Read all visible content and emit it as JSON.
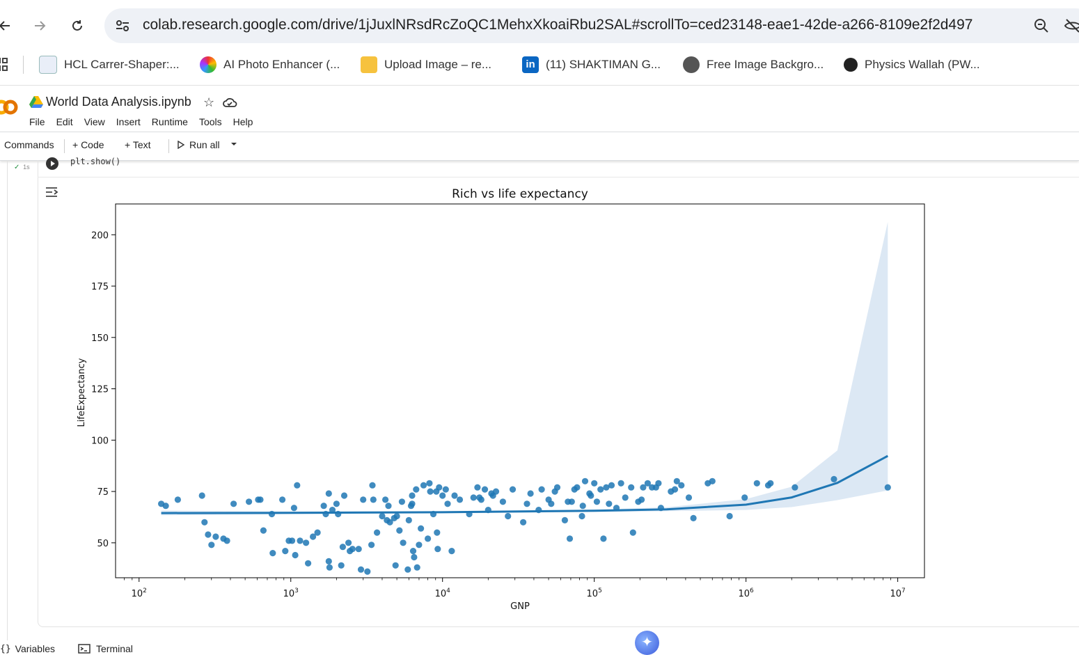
{
  "browser": {
    "url": "colab.research.google.com/drive/1jJuxlNRsdRcZoQC1MehxXkoaiRbu2SAL#scrollTo=ced23148-eae1-42de-a266-8109e2f2d497",
    "bookmarks": [
      {
        "label": "HCL Carrer-Shaper:...",
        "icon": "hcl-icon"
      },
      {
        "label": "AI Photo Enhancer (...",
        "icon": "ai-photo-icon"
      },
      {
        "label": "Upload Image – re...",
        "icon": "upload-image-icon"
      },
      {
        "label": "(11) SHAKTIMAN G...",
        "icon": "linkedin-icon"
      },
      {
        "label": "Free Image Backgro...",
        "icon": "globe-icon"
      },
      {
        "label": "Physics Wallah (PW...",
        "icon": "pw-icon"
      }
    ]
  },
  "colab": {
    "title": "World Data Analysis.ipynb",
    "menu": [
      "File",
      "Edit",
      "View",
      "Insert",
      "Runtime",
      "Tools",
      "Help"
    ],
    "toolbar": {
      "commands": "Commands",
      "code": "+ Code",
      "text": "+ Text",
      "run_all": "Run all"
    },
    "cell": {
      "code": "plt.show()",
      "exec_time": "1s"
    },
    "bottom": {
      "variables": "Variables",
      "terminal": "Terminal"
    }
  },
  "colors": {
    "series": "#1f77b4",
    "band": "#dce8f4"
  },
  "chart_data": {
    "type": "scatter",
    "title": "Rich vs life expectancy",
    "xlabel": "GNP",
    "ylabel": "LifeExpectancy",
    "xscale": "log",
    "xlim": [
      70,
      15000000
    ],
    "ylim": [
      33,
      215
    ],
    "x_ticks": [
      "10^2",
      "10^3",
      "10^4",
      "10^5",
      "10^6",
      "10^7"
    ],
    "y_ticks": [
      50,
      75,
      100,
      125,
      150,
      175,
      200
    ],
    "points": [
      [
        140,
        69
      ],
      [
        150,
        68
      ],
      [
        180,
        71
      ],
      [
        260,
        73
      ],
      [
        270,
        60
      ],
      [
        285,
        54
      ],
      [
        300,
        49
      ],
      [
        320,
        53
      ],
      [
        360,
        52
      ],
      [
        380,
        51
      ],
      [
        420,
        69
      ],
      [
        530,
        70
      ],
      [
        610,
        71
      ],
      [
        630,
        71
      ],
      [
        660,
        56
      ],
      [
        750,
        64
      ],
      [
        760,
        45
      ],
      [
        880,
        71
      ],
      [
        920,
        46
      ],
      [
        970,
        51
      ],
      [
        1020,
        51
      ],
      [
        1050,
        67
      ],
      [
        1070,
        44
      ],
      [
        1100,
        78
      ],
      [
        1150,
        51
      ],
      [
        1260,
        50
      ],
      [
        1300,
        40
      ],
      [
        1400,
        53
      ],
      [
        1500,
        55
      ],
      [
        1650,
        68
      ],
      [
        1700,
        64
      ],
      [
        1780,
        74
      ],
      [
        1780,
        41
      ],
      [
        1800,
        38
      ],
      [
        1880,
        66
      ],
      [
        2000,
        69
      ],
      [
        2050,
        64
      ],
      [
        2150,
        39
      ],
      [
        2200,
        48
      ],
      [
        2250,
        73
      ],
      [
        2400,
        50
      ],
      [
        2450,
        46
      ],
      [
        2550,
        47
      ],
      [
        2800,
        47
      ],
      [
        2900,
        37
      ],
      [
        3000,
        71
      ],
      [
        3200,
        36
      ],
      [
        3400,
        49
      ],
      [
        3450,
        78
      ],
      [
        3500,
        71
      ],
      [
        3700,
        55
      ],
      [
        4000,
        63
      ],
      [
        4200,
        71
      ],
      [
        4300,
        61
      ],
      [
        4400,
        68
      ],
      [
        4500,
        60
      ],
      [
        4800,
        62
      ],
      [
        4900,
        39
      ],
      [
        5000,
        63
      ],
      [
        5200,
        56
      ],
      [
        5400,
        70
      ],
      [
        5500,
        50
      ],
      [
        5900,
        37
      ],
      [
        6000,
        61
      ],
      [
        6200,
        68
      ],
      [
        6300,
        73
      ],
      [
        6300,
        69
      ],
      [
        6400,
        46
      ],
      [
        6500,
        43
      ],
      [
        6700,
        76
      ],
      [
        6800,
        38
      ],
      [
        7000,
        49
      ],
      [
        7200,
        57
      ],
      [
        7500,
        78
      ],
      [
        8000,
        52
      ],
      [
        8200,
        79
      ],
      [
        8300,
        75
      ],
      [
        8700,
        64
      ],
      [
        9100,
        75
      ],
      [
        9200,
        55
      ],
      [
        9300,
        47
      ],
      [
        9500,
        77
      ],
      [
        10000,
        73
      ],
      [
        10500,
        76
      ],
      [
        10800,
        69
      ],
      [
        11500,
        46
      ],
      [
        12000,
        73
      ],
      [
        13000,
        71
      ],
      [
        15000,
        64
      ],
      [
        16000,
        72
      ],
      [
        17000,
        77
      ],
      [
        17500,
        72
      ],
      [
        18000,
        71
      ],
      [
        19000,
        76
      ],
      [
        20000,
        66
      ],
      [
        21000,
        74
      ],
      [
        21500,
        73
      ],
      [
        22500,
        75
      ],
      [
        25000,
        70
      ],
      [
        27000,
        63
      ],
      [
        29000,
        76
      ],
      [
        34000,
        60
      ],
      [
        36000,
        69
      ],
      [
        38000,
        74
      ],
      [
        43000,
        66
      ],
      [
        45000,
        76
      ],
      [
        50000,
        71
      ],
      [
        52000,
        69
      ],
      [
        55000,
        75
      ],
      [
        57000,
        77
      ],
      [
        64000,
        61
      ],
      [
        67000,
        70
      ],
      [
        69000,
        52
      ],
      [
        71000,
        70
      ],
      [
        74000,
        76
      ],
      [
        77000,
        77
      ],
      [
        83000,
        63
      ],
      [
        84000,
        68
      ],
      [
        87000,
        80
      ],
      [
        93000,
        74
      ],
      [
        95000,
        73
      ],
      [
        100000,
        79
      ],
      [
        104000,
        70
      ],
      [
        110000,
        76
      ],
      [
        115000,
        52
      ],
      [
        120000,
        77
      ],
      [
        125000,
        69
      ],
      [
        130000,
        78
      ],
      [
        140000,
        67
      ],
      [
        150000,
        79
      ],
      [
        160000,
        72
      ],
      [
        175000,
        77
      ],
      [
        180000,
        55
      ],
      [
        195000,
        70
      ],
      [
        205000,
        71
      ],
      [
        210000,
        77
      ],
      [
        225000,
        79
      ],
      [
        240000,
        77
      ],
      [
        255000,
        77
      ],
      [
        265000,
        79
      ],
      [
        275000,
        67
      ],
      [
        320000,
        75
      ],
      [
        340000,
        76
      ],
      [
        350000,
        80
      ],
      [
        375000,
        78
      ],
      [
        420000,
        72
      ],
      [
        450000,
        62
      ],
      [
        560000,
        79
      ],
      [
        600000,
        80
      ],
      [
        780000,
        63
      ],
      [
        980000,
        72
      ],
      [
        1180000,
        79
      ],
      [
        1400000,
        78
      ],
      [
        1450000,
        79
      ],
      [
        2100000,
        77
      ],
      [
        3800000,
        81
      ],
      [
        8600000,
        77
      ]
    ],
    "regression": {
      "x": [
        140,
        1000,
        10000,
        100000,
        300000,
        1000000,
        2000000,
        4000000,
        8600000
      ],
      "y": [
        64.5,
        64.6,
        64.9,
        65.6,
        66.3,
        68.6,
        72.1,
        79.2,
        92.3
      ],
      "ci_low": [
        63.4,
        63.9,
        64.5,
        65.0,
        65.4,
        66.0,
        67.4,
        70.8,
        75.5
      ],
      "ci_high": [
        65.7,
        65.3,
        65.4,
        66.2,
        67.3,
        71.3,
        77.3,
        95.0,
        206.3
      ]
    }
  }
}
